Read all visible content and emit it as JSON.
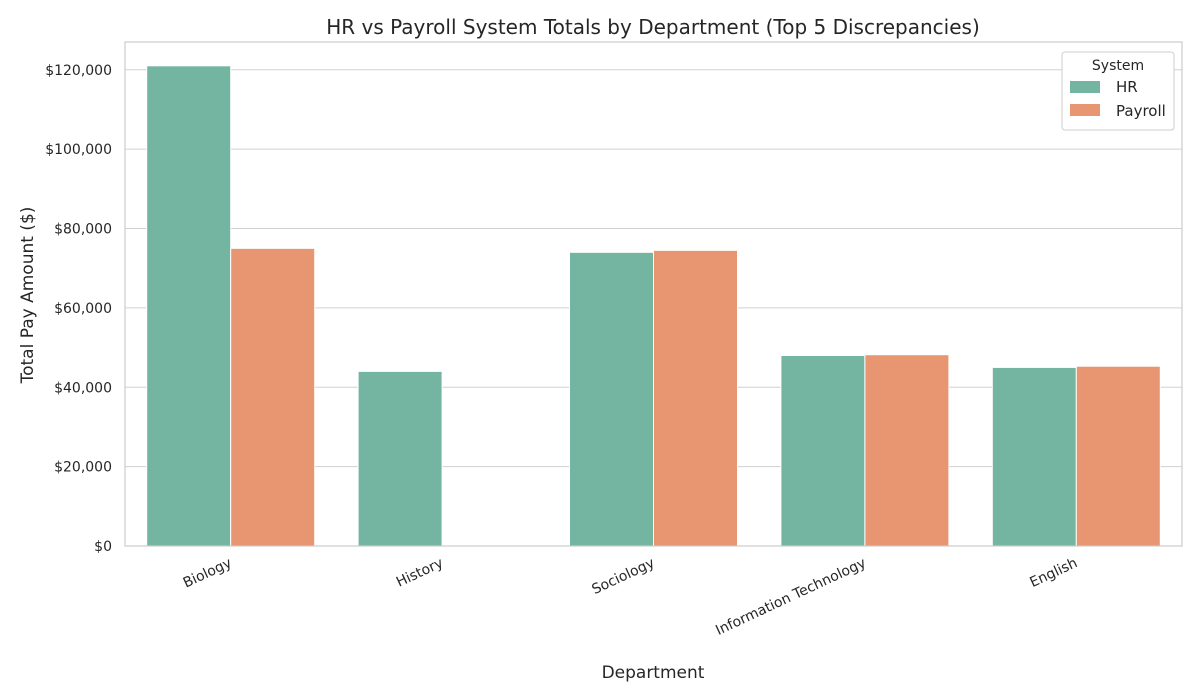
{
  "chart_data": {
    "type": "bar",
    "title": "HR vs Payroll System Totals by Department (Top 5 Discrepancies)",
    "xlabel": "Department",
    "ylabel": "Total Pay Amount ($)",
    "categories": [
      "Biology",
      "History",
      "Sociology",
      "Information Technology",
      "English"
    ],
    "series": [
      {
        "name": "HR",
        "color": "#73b5a0",
        "values": [
          121000,
          44000,
          74000,
          48000,
          45000
        ]
      },
      {
        "name": "Payroll",
        "color": "#e89672",
        "values": [
          75000,
          0,
          74500,
          48200,
          45300
        ]
      }
    ],
    "ylim": [
      0,
      127000
    ],
    "yticks": [
      0,
      20000,
      40000,
      60000,
      80000,
      100000,
      120000
    ],
    "ytick_labels": [
      "$0",
      "$20,000",
      "$40,000",
      "$60,000",
      "$80,000",
      "$100,000",
      "$120,000"
    ],
    "grid": "horizontal",
    "legend": {
      "title": "System",
      "placement": "top-right"
    }
  }
}
